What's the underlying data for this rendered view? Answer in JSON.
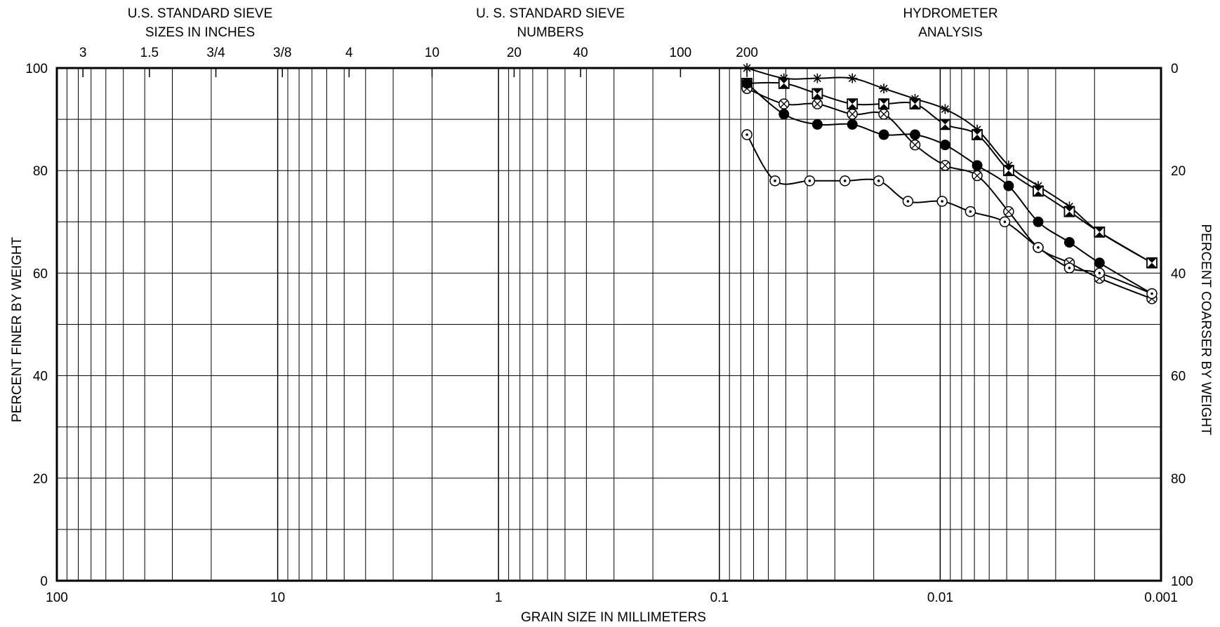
{
  "chart_data": {
    "type": "line",
    "x_axis": {
      "label": "GRAIN SIZE IN MILLIMETERS",
      "scale": "log",
      "reversed": true,
      "range": [
        100,
        0.001
      ],
      "tick_labels": [
        "100",
        "10",
        "1",
        "0.1",
        "0.01",
        "0.001"
      ]
    },
    "y_axis": {
      "label": "PERCENT FINER BY WEIGHT",
      "range": [
        0,
        100
      ],
      "tick_labels": [
        "100",
        "80",
        "60",
        "40",
        "20",
        "0"
      ]
    },
    "y2_axis": {
      "label": "PERCENT COARSER BY WEIGHT",
      "range": [
        100,
        0
      ],
      "tick_labels": [
        "0",
        "20",
        "40",
        "60",
        "80",
        "100"
      ]
    },
    "top_headers": {
      "sieve_inches": [
        "U.S. STANDARD SIEVE",
        "SIZES IN INCHES"
      ],
      "sieve_numbers": [
        "U. S. STANDARD SIEVE",
        "NUMBERS"
      ],
      "hydrometer": [
        "HYDROMETER",
        "ANALYSIS"
      ]
    },
    "sieve_sizes": [
      {
        "label": "3",
        "mm": 76.2
      },
      {
        "label": "1.5",
        "mm": 38.1
      },
      {
        "label": "3/4",
        "mm": 19.05
      },
      {
        "label": "3/8",
        "mm": 9.525
      },
      {
        "label": "4",
        "mm": 4.75
      },
      {
        "label": "10",
        "mm": 2.0
      },
      {
        "label": "20",
        "mm": 0.85
      },
      {
        "label": "40",
        "mm": 0.425
      },
      {
        "label": "100",
        "mm": 0.15
      },
      {
        "label": "200",
        "mm": 0.075
      }
    ],
    "grid": true,
    "legend": "none",
    "series": [
      {
        "marker": "asterisk",
        "points": [
          [
            0.075,
            100
          ],
          [
            0.051,
            98
          ],
          [
            0.036,
            98
          ],
          [
            0.025,
            98
          ],
          [
            0.018,
            96
          ],
          [
            0.013,
            94
          ],
          [
            0.0095,
            92
          ],
          [
            0.0068,
            88
          ],
          [
            0.0049,
            81
          ],
          [
            0.0036,
            77
          ],
          [
            0.0026,
            73
          ],
          [
            0.0019,
            68
          ],
          [
            0.0011,
            62
          ]
        ]
      },
      {
        "marker": "box-x",
        "points": [
          [
            0.075,
            97
          ],
          [
            0.051,
            97
          ],
          [
            0.036,
            95
          ],
          [
            0.025,
            93
          ],
          [
            0.018,
            93
          ],
          [
            0.013,
            93
          ],
          [
            0.0095,
            89
          ],
          [
            0.0068,
            87
          ],
          [
            0.0049,
            80
          ],
          [
            0.0036,
            76
          ],
          [
            0.0026,
            72
          ],
          [
            0.0019,
            68
          ],
          [
            0.0011,
            62
          ]
        ]
      },
      {
        "marker": "circle-x",
        "points": [
          [
            0.075,
            96
          ],
          [
            0.051,
            93
          ],
          [
            0.036,
            93
          ],
          [
            0.025,
            91
          ],
          [
            0.018,
            91
          ],
          [
            0.013,
            85
          ],
          [
            0.0095,
            81
          ],
          [
            0.0068,
            79
          ],
          [
            0.0049,
            72
          ],
          [
            0.0036,
            65
          ],
          [
            0.0026,
            62
          ],
          [
            0.0019,
            59
          ],
          [
            0.0011,
            55
          ]
        ]
      },
      {
        "marker": "filled-circle",
        "points": [
          [
            0.075,
            97
          ],
          [
            0.051,
            91
          ],
          [
            0.036,
            89
          ],
          [
            0.025,
            89
          ],
          [
            0.018,
            87
          ],
          [
            0.013,
            87
          ],
          [
            0.0095,
            85
          ],
          [
            0.0068,
            81
          ],
          [
            0.0049,
            77
          ],
          [
            0.0036,
            70
          ],
          [
            0.0026,
            66
          ],
          [
            0.0019,
            62
          ],
          [
            0.0011,
            56
          ]
        ]
      },
      {
        "marker": "circle-dot",
        "points": [
          [
            0.075,
            87
          ],
          [
            0.056,
            78
          ],
          [
            0.039,
            78
          ],
          [
            0.027,
            78
          ],
          [
            0.019,
            78
          ],
          [
            0.014,
            74
          ],
          [
            0.0098,
            74
          ],
          [
            0.0073,
            72
          ],
          [
            0.0051,
            70
          ],
          [
            0.0036,
            65
          ],
          [
            0.0026,
            61
          ],
          [
            0.0019,
            60
          ],
          [
            0.0011,
            56
          ]
        ]
      }
    ]
  }
}
